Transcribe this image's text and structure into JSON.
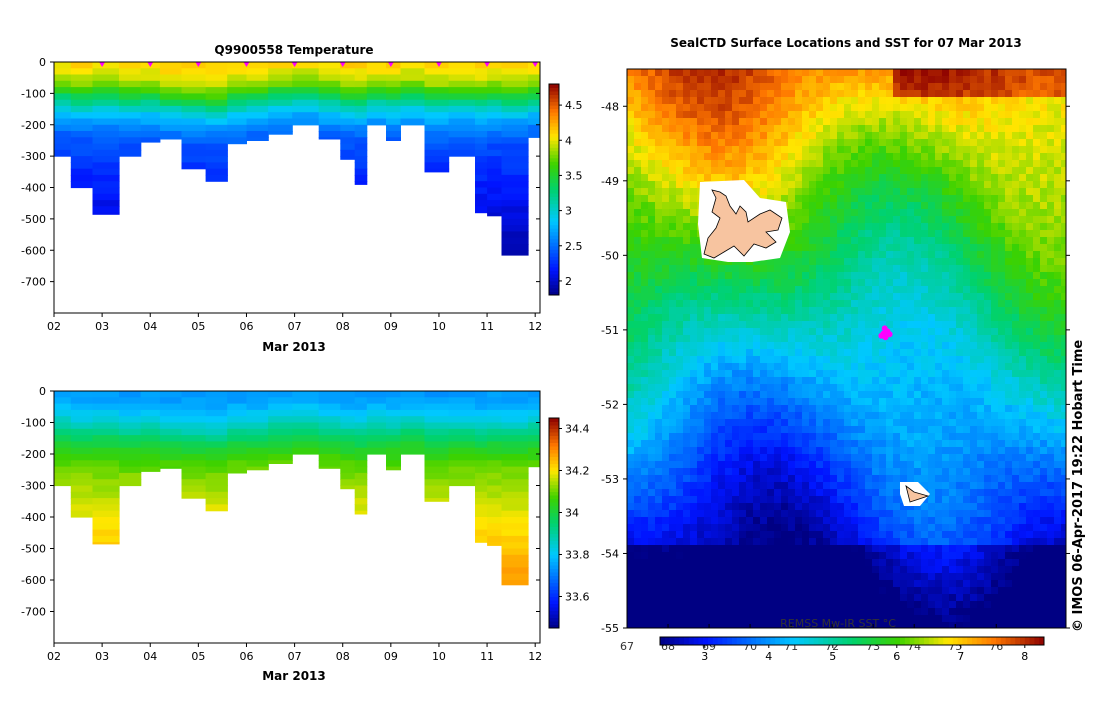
{
  "chart_data": [
    {
      "id": "temperature",
      "type": "heatmap",
      "title": "Q9900558  Temperature",
      "xlabel": "Mar 2013",
      "x_ticks": [
        "02",
        "03",
        "04",
        "05",
        "06",
        "07",
        "08",
        "09",
        "10",
        "11",
        "12"
      ],
      "xlim": [
        2,
        12.1
      ],
      "y_ticks": [
        "0",
        "-100",
        "-200",
        "-300",
        "-400",
        "-500",
        "-600",
        "-700"
      ],
      "ylim": [
        -800,
        0
      ],
      "colorbar": {
        "ticks": [
          "2",
          "2.5",
          "3",
          "3.5",
          "4",
          "4.5"
        ],
        "range": [
          1.8,
          4.8
        ]
      },
      "profile_markers": [
        3.0,
        4.0,
        5.0,
        6.0,
        7.0,
        8.0,
        9.0,
        10.0,
        11.0,
        12.0
      ],
      "profiles": [
        {
          "x0": 2.0,
          "x1": 2.35,
          "depth": -300,
          "thermocline": -110
        },
        {
          "x0": 2.35,
          "x1": 2.8,
          "depth": -400,
          "thermocline": -120
        },
        {
          "x0": 2.8,
          "x1": 3.35,
          "depth": -485,
          "thermocline": -115
        },
        {
          "x0": 3.35,
          "x1": 3.8,
          "depth": -300,
          "thermocline": -125
        },
        {
          "x0": 3.8,
          "x1": 4.2,
          "depth": -255,
          "thermocline": -120
        },
        {
          "x0": 4.2,
          "x1": 4.65,
          "depth": -245,
          "thermocline": -130
        },
        {
          "x0": 4.65,
          "x1": 5.15,
          "depth": -340,
          "thermocline": -135
        },
        {
          "x0": 5.15,
          "x1": 5.6,
          "depth": -380,
          "thermocline": -140
        },
        {
          "x0": 5.6,
          "x1": 6.0,
          "depth": -260,
          "thermocline": -125
        },
        {
          "x0": 6.0,
          "x1": 6.45,
          "depth": -250,
          "thermocline": -120
        },
        {
          "x0": 6.45,
          "x1": 6.95,
          "depth": -230,
          "thermocline": -110
        },
        {
          "x0": 6.95,
          "x1": 7.5,
          "depth": -200,
          "thermocline": -105
        },
        {
          "x0": 7.5,
          "x1": 7.95,
          "depth": -245,
          "thermocline": -115
        },
        {
          "x0": 7.95,
          "x1": 8.25,
          "depth": -310,
          "thermocline": -125
        },
        {
          "x0": 8.25,
          "x1": 8.5,
          "depth": -390,
          "thermocline": -130
        },
        {
          "x0": 8.5,
          "x1": 8.9,
          "depth": -200,
          "thermocline": -115
        },
        {
          "x0": 8.9,
          "x1": 9.2,
          "depth": -250,
          "thermocline": -120
        },
        {
          "x0": 9.2,
          "x1": 9.7,
          "depth": -200,
          "thermocline": -110
        },
        {
          "x0": 9.7,
          "x1": 10.2,
          "depth": -350,
          "thermocline": -125
        },
        {
          "x0": 10.2,
          "x1": 10.75,
          "depth": -300,
          "thermocline": -120
        },
        {
          "x0": 10.75,
          "x1": 11.0,
          "depth": -480,
          "thermocline": -125
        },
        {
          "x0": 11.0,
          "x1": 11.3,
          "depth": -490,
          "thermocline": -120
        },
        {
          "x0": 11.3,
          "x1": 11.85,
          "depth": -615,
          "thermocline": -125
        },
        {
          "x0": 11.85,
          "x1": 12.1,
          "depth": -240,
          "thermocline": -115
        }
      ]
    },
    {
      "id": "salinity",
      "type": "heatmap",
      "title": "",
      "xlabel": "Mar 2013",
      "x_ticks": [
        "02",
        "03",
        "04",
        "05",
        "06",
        "07",
        "08",
        "09",
        "10",
        "11",
        "12"
      ],
      "xlim": [
        2,
        12.1
      ],
      "y_ticks": [
        "0",
        "-100",
        "-200",
        "-300",
        "-400",
        "-500",
        "-600",
        "-700"
      ],
      "ylim": [
        -800,
        0
      ],
      "colorbar": {
        "ticks": [
          "33.6",
          "33.8",
          "34",
          "34.2",
          "34.4"
        ],
        "range": [
          33.45,
          34.45
        ]
      }
    },
    {
      "id": "sst-map",
      "type": "heatmap",
      "title": "SealCTD Surface Locations and SST for 07 Mar 2013",
      "x_ticks": [
        "67",
        "68",
        "69",
        "70",
        "71",
        "72",
        "73",
        "74",
        "75",
        "76"
      ],
      "y_ticks": [
        "-48",
        "-49",
        "-50",
        "-51",
        "-52",
        "-53",
        "-54",
        "-55"
      ],
      "xlim": [
        67,
        77.7
      ],
      "ylim": [
        -55,
        -47.5
      ],
      "colorbar": {
        "label": "REMSS Mw-IR SST °C",
        "ticks": [
          "3",
          "4",
          "5",
          "6",
          "7",
          "8"
        ],
        "range": [
          2.3,
          8.3
        ]
      },
      "surface_locations": [
        {
          "lon": 73.25,
          "lat": -51.05
        },
        {
          "lon": 73.35,
          "lat": -51.02
        },
        {
          "lon": 73.3,
          "lat": -51.1
        },
        {
          "lon": 73.2,
          "lat": -51.08
        },
        {
          "lon": 73.4,
          "lat": -51.06
        },
        {
          "lon": 73.28,
          "lat": -50.98
        }
      ]
    }
  ],
  "credit": "© IMOS 06-Apr-2017 19:22 Hobart Time",
  "colors": {
    "island": "#f7c4a0",
    "marker": "#ff00ff"
  }
}
